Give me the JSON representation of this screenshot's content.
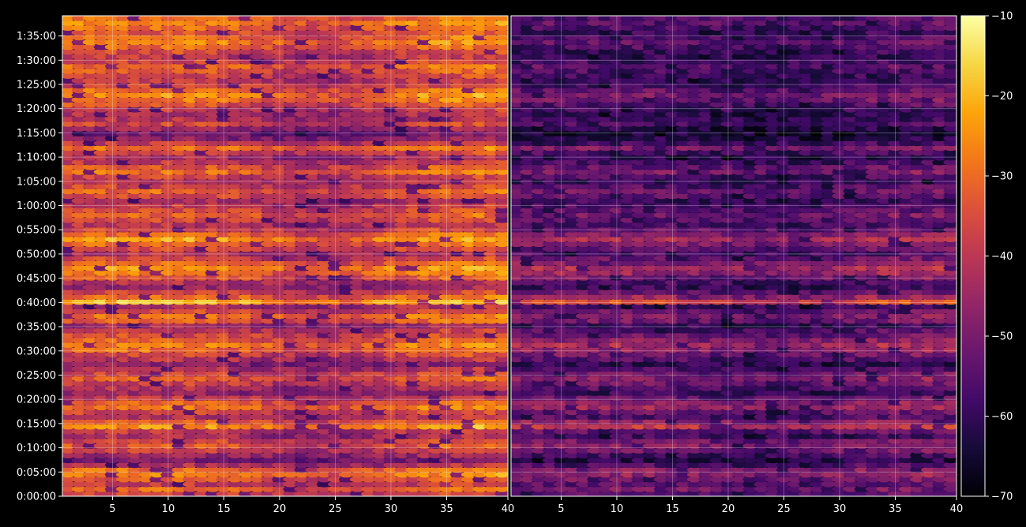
{
  "chart_data": {
    "type": "heatmap",
    "title": "",
    "xlabel": "",
    "ylabel": "",
    "panels": [
      {
        "name": "",
        "x_range": [
          1,
          40
        ],
        "x_ticks": [
          5,
          10,
          15,
          20,
          25,
          30,
          35,
          40
        ],
        "x_tick_labels": [
          "5",
          "10",
          "15",
          "20",
          "25",
          "30",
          "35",
          "40"
        ]
      },
      {
        "name": "",
        "x_range": [
          1,
          40
        ],
        "x_ticks": [
          5,
          10,
          15,
          20,
          25,
          30,
          35,
          40
        ],
        "x_tick_labels": [
          "5",
          "10",
          "15",
          "20",
          "25",
          "30",
          "35",
          "40"
        ]
      }
    ],
    "y_range_seconds": [
      0,
      5950
    ],
    "y_ticks_seconds": [
      0,
      300,
      600,
      900,
      1200,
      1500,
      1800,
      2100,
      2400,
      2700,
      3000,
      3300,
      3600,
      3900,
      4200,
      4500,
      4800,
      5100,
      5400,
      5700
    ],
    "y_tick_labels": [
      "0:00:00",
      "0:05:00",
      "0:10:00",
      "0:15:00",
      "0:20:00",
      "0:25:00",
      "0:30:00",
      "0:35:00",
      "0:40:00",
      "0:45:00",
      "0:50:00",
      "0:55:00",
      "1:00:00",
      "1:05:00",
      "1:10:00",
      "1:15:00",
      "1:20:00",
      "1:25:00",
      "1:30:00",
      "1:35:00"
    ],
    "grid": true,
    "colormap": "inferno",
    "colorbar": {
      "range": [
        -70,
        -10
      ],
      "ticks": [
        -10,
        -20,
        -30,
        -40,
        -50,
        -60,
        -70
      ],
      "tick_labels": [
        "−10",
        "−20",
        "−30",
        "−40",
        "−50",
        "−60",
        "−70"
      ]
    },
    "row_intensity_left": [
      0.62,
      0.7,
      0.55,
      0.65,
      0.78,
      0.72,
      0.5,
      0.35,
      0.45,
      0.58,
      0.66,
      0.6,
      0.48,
      0.55,
      0.82,
      0.7,
      0.52,
      0.6,
      0.75,
      0.68,
      0.55,
      0.42,
      0.5,
      0.58,
      0.66,
      0.6,
      0.5,
      0.4,
      0.52,
      0.6,
      0.72,
      0.78,
      0.7,
      0.62,
      0.55,
      0.45,
      0.68,
      0.74,
      0.62,
      0.5,
      0.9,
      0.72,
      0.58,
      0.45,
      0.52,
      0.66,
      0.76,
      0.82,
      0.7,
      0.6,
      0.5,
      0.62,
      0.72,
      0.85,
      0.7,
      0.6,
      0.52,
      0.6,
      0.68,
      0.62,
      0.55,
      0.5,
      0.62,
      0.7,
      0.6,
      0.52,
      0.58,
      0.72,
      0.65,
      0.55,
      0.48,
      0.6,
      0.74,
      0.55,
      0.4,
      0.35,
      0.45,
      0.6,
      0.52,
      0.5,
      0.55,
      0.65,
      0.75,
      0.8,
      0.72,
      0.6,
      0.55,
      0.6,
      0.66,
      0.72,
      0.6,
      0.55,
      0.62,
      0.7,
      0.78,
      0.72,
      0.65,
      0.72,
      0.78,
      0.74
    ],
    "row_intensity_right": [
      0.3,
      0.36,
      0.28,
      0.34,
      0.42,
      0.4,
      0.26,
      0.16,
      0.22,
      0.34,
      0.4,
      0.35,
      0.22,
      0.3,
      0.55,
      0.42,
      0.26,
      0.32,
      0.46,
      0.4,
      0.3,
      0.2,
      0.26,
      0.33,
      0.4,
      0.34,
      0.24,
      0.18,
      0.26,
      0.34,
      0.42,
      0.48,
      0.4,
      0.32,
      0.26,
      0.2,
      0.34,
      0.4,
      0.3,
      0.22,
      0.64,
      0.44,
      0.3,
      0.2,
      0.24,
      0.36,
      0.44,
      0.5,
      0.4,
      0.32,
      0.24,
      0.32,
      0.38,
      0.5,
      0.38,
      0.3,
      0.24,
      0.28,
      0.34,
      0.3,
      0.24,
      0.2,
      0.28,
      0.34,
      0.26,
      0.2,
      0.24,
      0.36,
      0.3,
      0.22,
      0.16,
      0.24,
      0.36,
      0.22,
      0.14,
      0.1,
      0.14,
      0.24,
      0.2,
      0.16,
      0.2,
      0.26,
      0.34,
      0.36,
      0.3,
      0.22,
      0.18,
      0.2,
      0.24,
      0.3,
      0.22,
      0.18,
      0.2,
      0.24,
      0.3,
      0.26,
      0.2,
      0.24,
      0.3,
      0.26
    ]
  }
}
